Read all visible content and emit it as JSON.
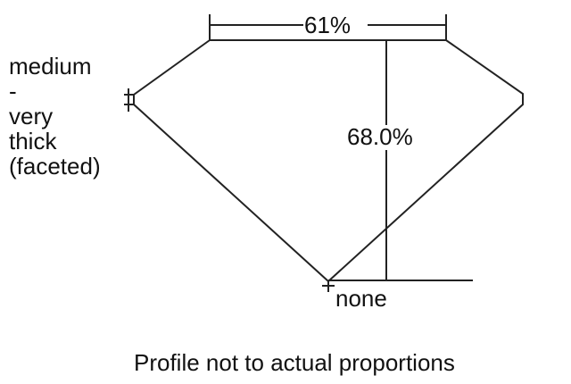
{
  "diagram": {
    "table_label": "61%",
    "depth_label": "68.0%",
    "girdle_label_lines": [
      "medium",
      "-",
      "very",
      "thick",
      "(faceted)"
    ],
    "culet_label": "none",
    "caption": "Profile not to actual proportions",
    "line_color": "#222222"
  }
}
